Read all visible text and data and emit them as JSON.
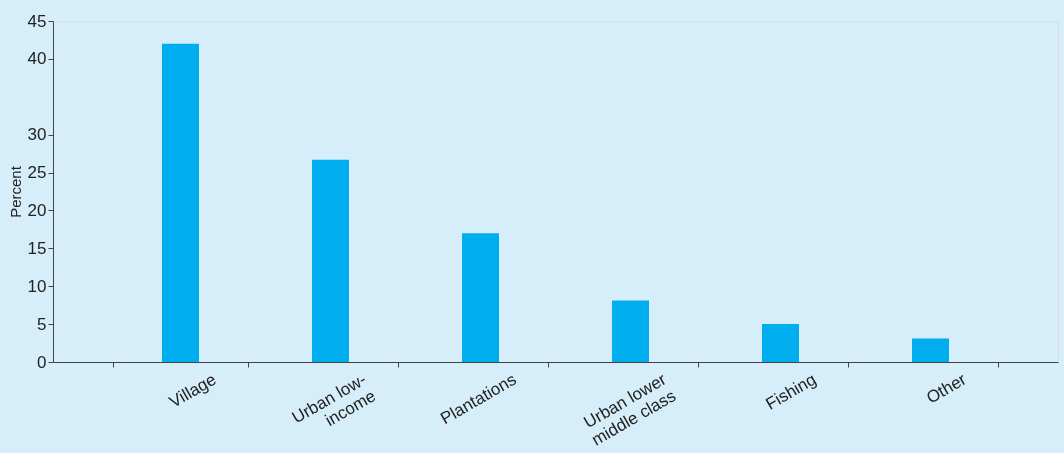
{
  "chart_data": {
    "type": "bar",
    "ylabel": "Percent",
    "categories": [
      "Village",
      "Urban low-\nincome",
      "Plantations",
      "Urban lower\nmiddle class",
      "Fishing",
      "Other"
    ],
    "values": [
      42,
      26.7,
      17,
      8.1,
      5,
      3.1
    ],
    "color": "#00aeef",
    "ylim": [
      0,
      45
    ],
    "yticks": [
      0,
      5,
      10,
      15,
      20,
      25,
      30,
      40,
      45
    ],
    "grid": false
  }
}
